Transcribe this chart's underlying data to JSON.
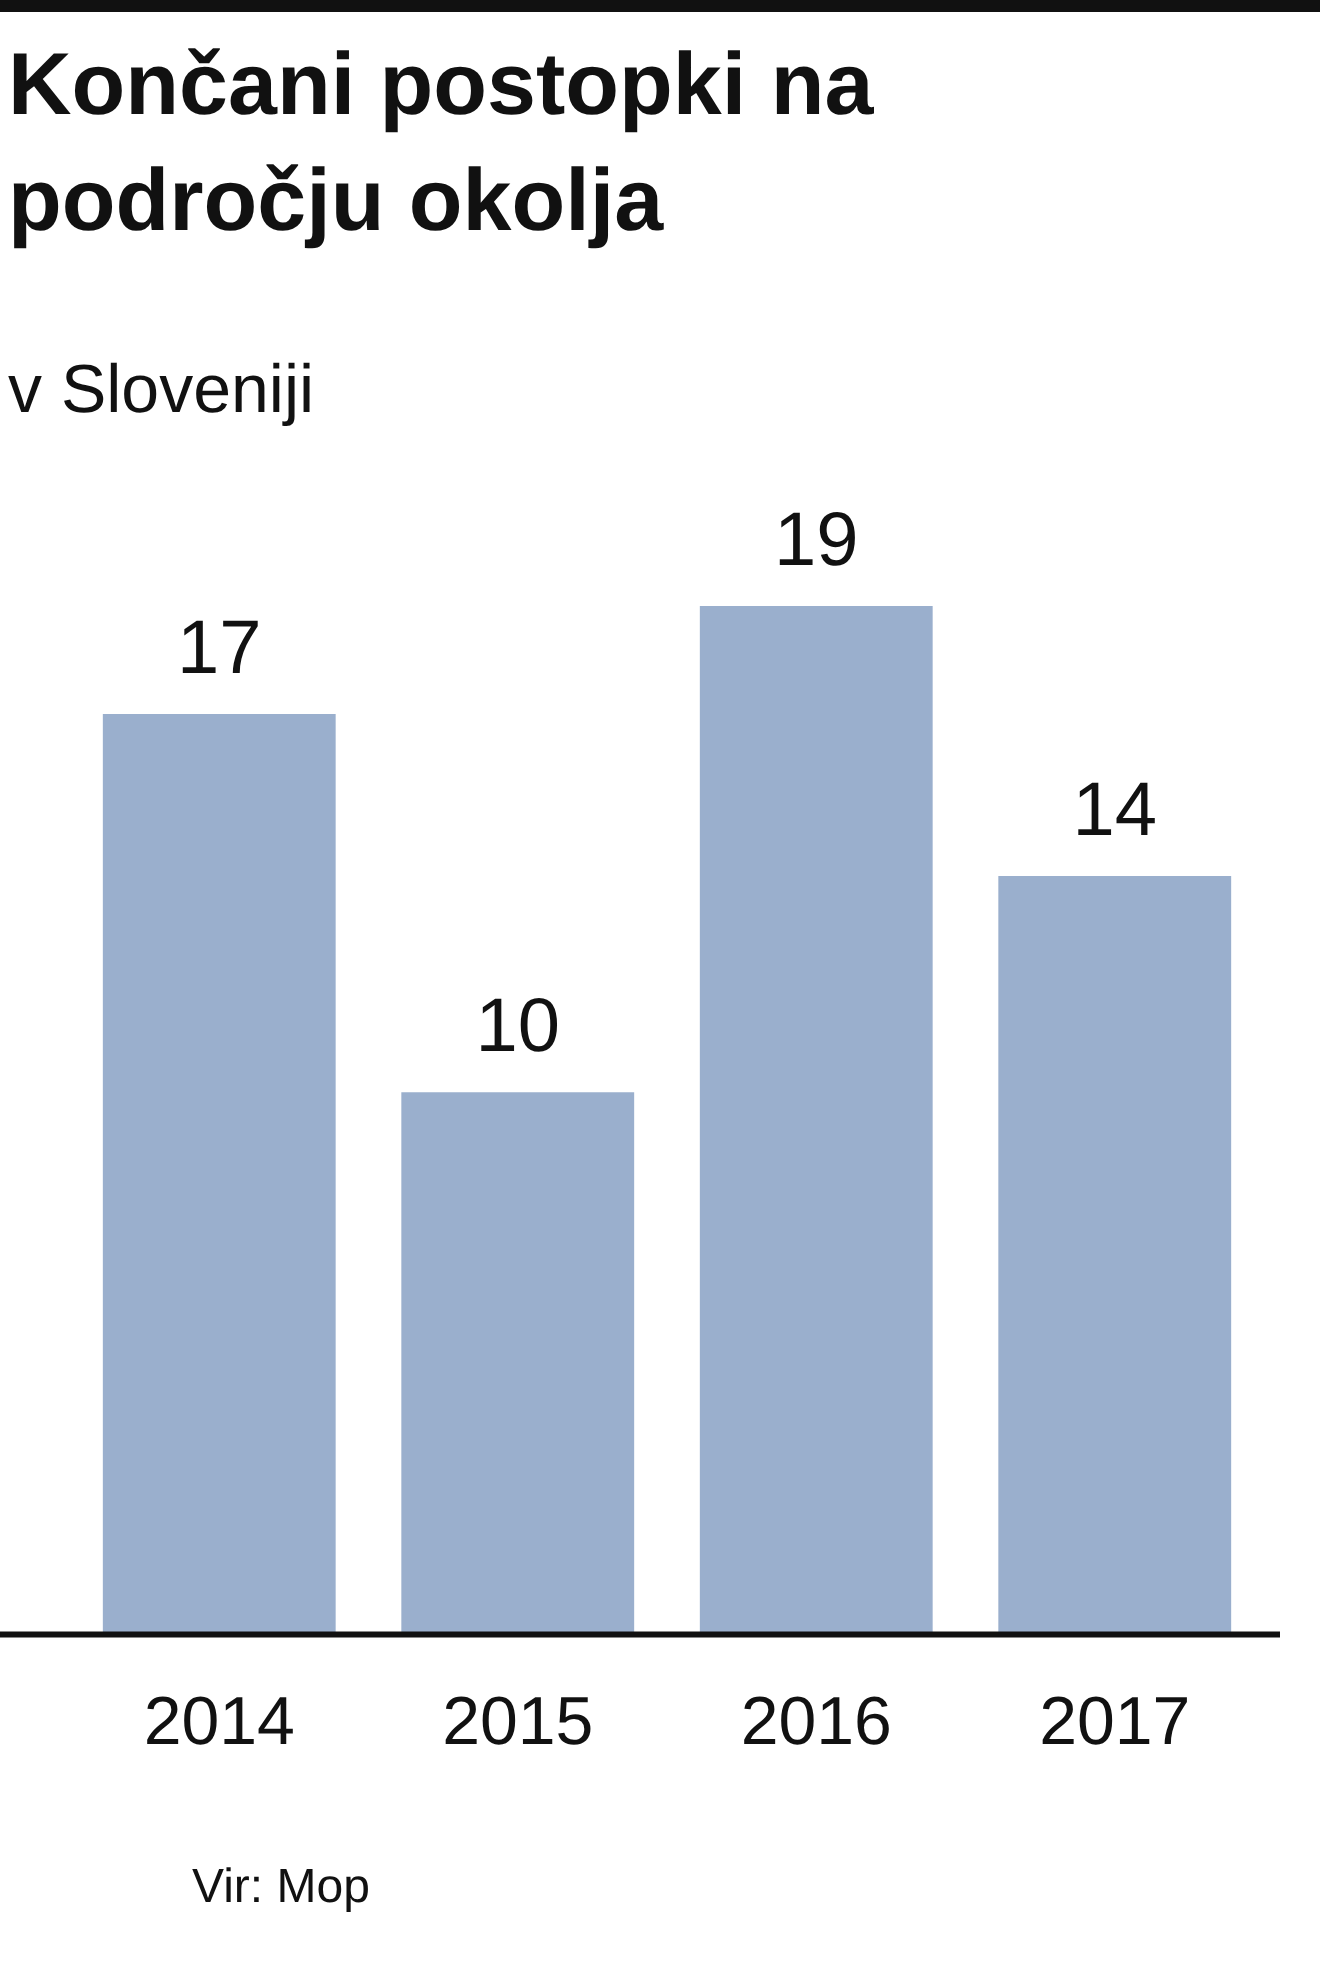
{
  "chart_data": {
    "type": "bar",
    "title": "Končani postopki na področju okolja",
    "subtitle": "v Sloveniji",
    "categories": [
      "2014",
      "2015",
      "2016",
      "2017"
    ],
    "values": [
      17,
      10,
      19,
      14
    ],
    "color": "#9aafcd",
    "data_labels": true,
    "relative": false,
    "annotations": [
      "Vir: Mop"
    ]
  }
}
